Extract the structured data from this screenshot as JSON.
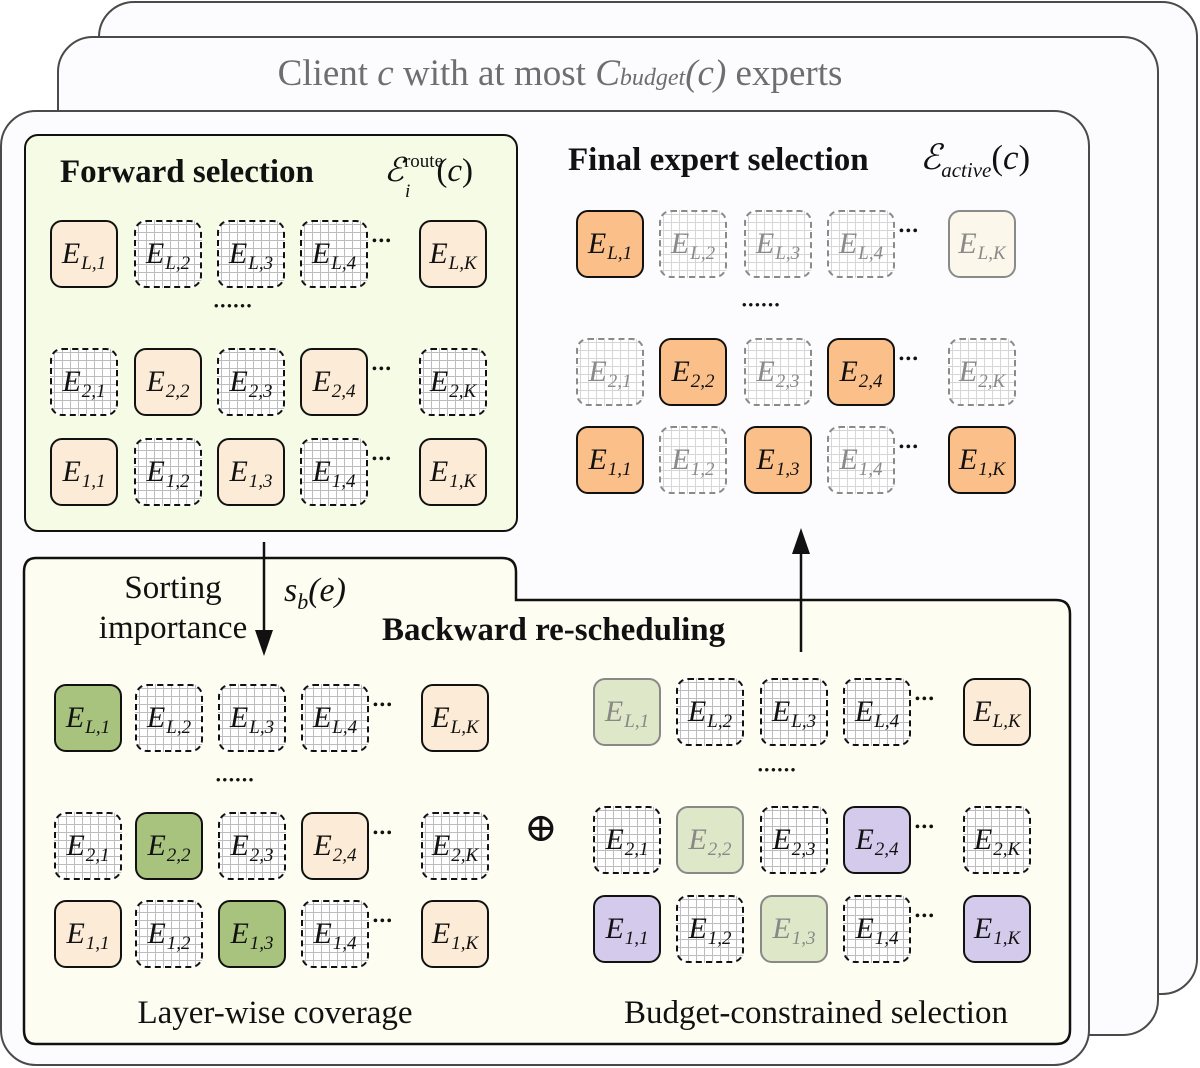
{
  "client_title": {
    "prefix": "Client ",
    "c": "c",
    "middle": " with at most ",
    "C": "C",
    "budget": "budget",
    "arg": "(c)",
    "suffix": " experts"
  },
  "forward": {
    "title": "Forward selection",
    "math_symbol": "ℰ",
    "math_sup": "route",
    "math_sub": "i",
    "math_arg": "(c)",
    "rows": [
      {
        "cells": [
          {
            "l": "L,1",
            "t": "peach"
          },
          {
            "l": "L,2",
            "t": "grid"
          },
          {
            "l": "L,3",
            "t": "grid"
          },
          {
            "l": "L,4",
            "t": "grid"
          },
          {
            "l": "L,K",
            "t": "peach"
          }
        ]
      },
      {
        "cells": [
          {
            "l": "2,1",
            "t": "grid"
          },
          {
            "l": "2,2",
            "t": "peach"
          },
          {
            "l": "2,3",
            "t": "grid"
          },
          {
            "l": "2,4",
            "t": "peach"
          },
          {
            "l": "2,K",
            "t": "grid"
          }
        ]
      },
      {
        "cells": [
          {
            "l": "1,1",
            "t": "peach"
          },
          {
            "l": "1,2",
            "t": "grid"
          },
          {
            "l": "1,3",
            "t": "peach"
          },
          {
            "l": "1,4",
            "t": "grid"
          },
          {
            "l": "1,K",
            "t": "peach"
          }
        ]
      }
    ]
  },
  "final": {
    "title": "Final expert selection",
    "math_symbol": "ℰ",
    "math_sub": "active",
    "math_arg": "(c)",
    "rows": [
      {
        "cells": [
          {
            "l": "L,1",
            "t": "orange"
          },
          {
            "l": "L,2",
            "t": "grid-faded"
          },
          {
            "l": "L,3",
            "t": "grid-faded"
          },
          {
            "l": "L,4",
            "t": "grid-faded"
          },
          {
            "l": "L,K",
            "t": "cream-faded"
          }
        ]
      },
      {
        "cells": [
          {
            "l": "2,1",
            "t": "grid-faded"
          },
          {
            "l": "2,2",
            "t": "orange"
          },
          {
            "l": "2,3",
            "t": "grid-faded"
          },
          {
            "l": "2,4",
            "t": "orange"
          },
          {
            "l": "2,K",
            "t": "grid-faded"
          }
        ]
      },
      {
        "cells": [
          {
            "l": "1,1",
            "t": "orange"
          },
          {
            "l": "1,2",
            "t": "grid-faded"
          },
          {
            "l": "1,3",
            "t": "orange"
          },
          {
            "l": "1,4",
            "t": "grid-faded"
          },
          {
            "l": "1,K",
            "t": "orange"
          }
        ]
      }
    ]
  },
  "backward": {
    "title": "Backward re-scheduling",
    "sorting_label_1": "Sorting",
    "sorting_label_2": "importance",
    "score_symbol": "s",
    "score_sub": "b",
    "score_arg": "(e)",
    "oplus": "⊕",
    "layerwise": {
      "label": "Layer-wise coverage",
      "rows": [
        {
          "cells": [
            {
              "l": "L,1",
              "t": "green"
            },
            {
              "l": "L,2",
              "t": "grid"
            },
            {
              "l": "L,3",
              "t": "grid"
            },
            {
              "l": "L,4",
              "t": "grid"
            },
            {
              "l": "L,K",
              "t": "peach"
            }
          ]
        },
        {
          "cells": [
            {
              "l": "2,1",
              "t": "grid"
            },
            {
              "l": "2,2",
              "t": "green"
            },
            {
              "l": "2,3",
              "t": "grid"
            },
            {
              "l": "2,4",
              "t": "peach"
            },
            {
              "l": "2,K",
              "t": "grid"
            }
          ]
        },
        {
          "cells": [
            {
              "l": "1,1",
              "t": "peach"
            },
            {
              "l": "1,2",
              "t": "grid"
            },
            {
              "l": "1,3",
              "t": "green"
            },
            {
              "l": "1,4",
              "t": "grid"
            },
            {
              "l": "1,K",
              "t": "peach"
            }
          ]
        }
      ]
    },
    "budget": {
      "label": "Budget-constrained selection",
      "rows": [
        {
          "cells": [
            {
              "l": "L,1",
              "t": "lightgreen"
            },
            {
              "l": "L,2",
              "t": "grid"
            },
            {
              "l": "L,3",
              "t": "grid"
            },
            {
              "l": "L,4",
              "t": "grid"
            },
            {
              "l": "L,K",
              "t": "peach"
            }
          ]
        },
        {
          "cells": [
            {
              "l": "2,1",
              "t": "grid"
            },
            {
              "l": "2,2",
              "t": "lightgreen"
            },
            {
              "l": "2,3",
              "t": "grid"
            },
            {
              "l": "2,4",
              "t": "purple"
            },
            {
              "l": "2,K",
              "t": "grid"
            }
          ]
        },
        {
          "cells": [
            {
              "l": "1,1",
              "t": "purple"
            },
            {
              "l": "1,2",
              "t": "grid"
            },
            {
              "l": "1,3",
              "t": "lightgreen"
            },
            {
              "l": "1,4",
              "t": "grid"
            },
            {
              "l": "1,K",
              "t": "purple"
            }
          ]
        }
      ]
    }
  },
  "symbols": {
    "expert": "E",
    "hdots": "•••",
    "vdots": "••••••"
  },
  "colors": {
    "peach": "#fcebd6",
    "orange": "#fbbf8a",
    "green": "#a8c37d",
    "lightgreen": "#dfe7c9",
    "purple": "#d4cbec",
    "forward_bg": "#f5fbe5",
    "backward_bg": "#fdfdf1",
    "client_bg": "#fcfbfe"
  }
}
